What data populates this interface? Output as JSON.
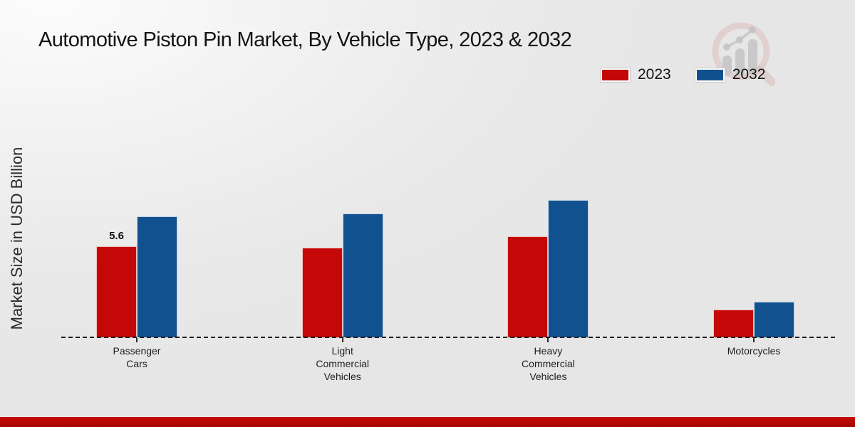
{
  "chart_data": {
    "type": "bar",
    "title": "Automotive Piston Pin Market, By Vehicle Type, 2023 & 2032",
    "xlabel": "",
    "ylabel": "Market Size in USD Billion",
    "categories": [
      "Passenger\nCars",
      "Light\nCommercial\nVehicles",
      "Heavy\nCommercial\nVehicles",
      "Motorcycles"
    ],
    "series": [
      {
        "name": "2023",
        "color": "#c40707",
        "values": [
          5.6,
          5.5,
          6.2,
          1.7
        ]
      },
      {
        "name": "2032",
        "color": "#11518f",
        "values": [
          7.4,
          7.6,
          8.4,
          2.2
        ]
      }
    ],
    "annotations": [
      {
        "series": "2023",
        "category_index": 0,
        "text": "5.6"
      }
    ],
    "ylim": [
      0,
      10
    ],
    "grid": false,
    "legend_position": "top-right",
    "baseline_style": "dashed",
    "units": "USD Billion"
  },
  "branding": {
    "logo_icon": "magnifier-bar-chart-watermark",
    "footer_color": "#b80400"
  }
}
